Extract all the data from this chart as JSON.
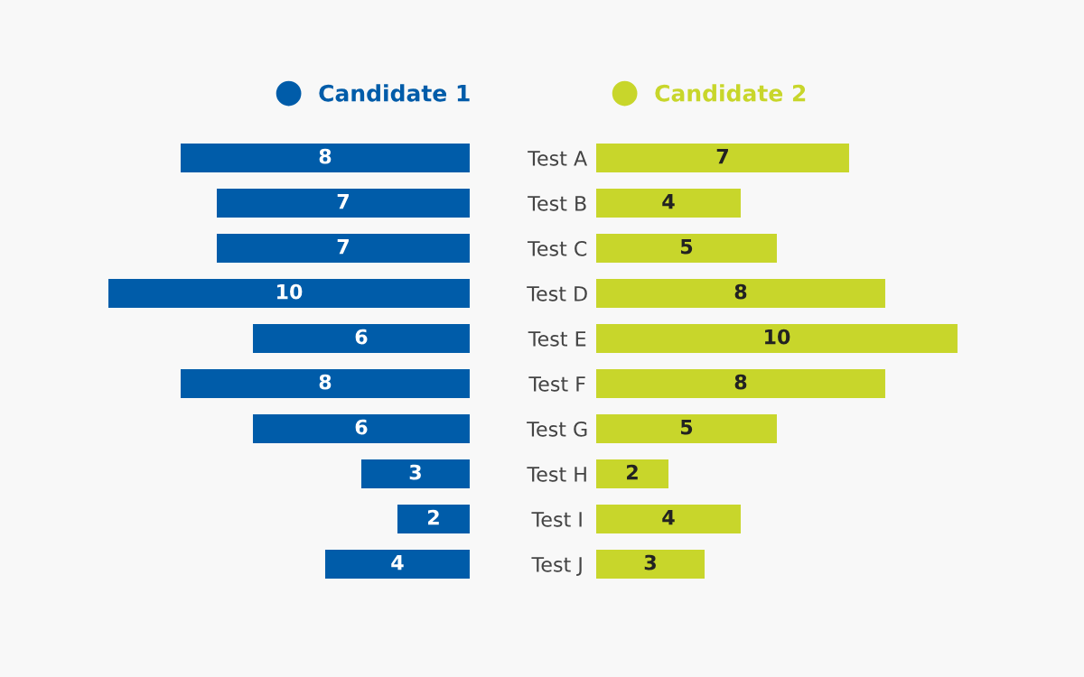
{
  "chart_data": [
    {
      "type": "bar",
      "orientation": "horizontal",
      "categories": [
        "Test A",
        "Test B",
        "Test C",
        "Test D",
        "Test E",
        "Test F",
        "Test G",
        "Test H",
        "Test I",
        "Test J"
      ],
      "series": [
        {
          "name": "Candidate 1",
          "color": "#005ca9",
          "values": [
            8,
            7,
            7,
            10,
            6,
            8,
            6,
            3,
            2,
            4
          ]
        }
      ],
      "xlim": [
        10,
        0
      ],
      "data_labels": true,
      "legend": "top",
      "tick_labels": "y"
    },
    {
      "type": "bar",
      "orientation": "horizontal",
      "categories": [
        null,
        null,
        null,
        null,
        null,
        null,
        null,
        null,
        null,
        null
      ],
      "series": [
        {
          "name": "Candidate 2",
          "color": "#c8d62b",
          "values": [
            7,
            4,
            5,
            8,
            10,
            8,
            5,
            2,
            4,
            3
          ]
        }
      ],
      "xlim": [
        0,
        10
      ],
      "data_labels": true,
      "legend": "top",
      "tick_labels": false
    }
  ]
}
